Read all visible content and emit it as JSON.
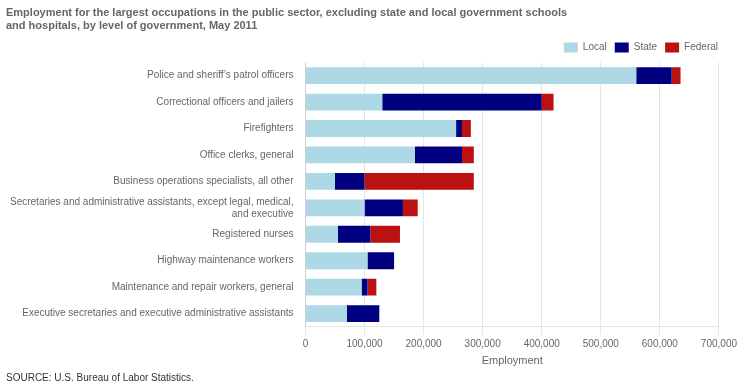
{
  "chart_data": {
    "type": "bar",
    "orientation": "horizontal",
    "stacked": true,
    "title": "Employment for the largest occupations in the public sector, excluding state and local government schools\nand hospitals, by level of government, May 2011",
    "source": "SOURCE: U.S. Bureau of Labor Statistics.",
    "xlabel": "Employment",
    "categories": [
      "Police and sheriff’s patrol officers",
      "Correctional officers and jailers",
      "Firefighters",
      "Office clerks, general",
      "Business operations specialists, all other",
      "Secretaries and administrative assistants, except legal, medical,\nand executive",
      "Registered nurses",
      "Highway maintenance workers",
      "Maintenance and repair workers, general",
      "Executive secretaries and executive administrative assistants"
    ],
    "series": [
      {
        "name": "Local",
        "color": "#ADD8E6",
        "values": [
          560000,
          130000,
          255000,
          185000,
          50000,
          100000,
          55000,
          105000,
          95000,
          70000
        ]
      },
      {
        "name": "State",
        "color": "#000080",
        "values": [
          60000,
          270000,
          10000,
          80000,
          50000,
          65000,
          55000,
          45000,
          10000,
          55000
        ]
      },
      {
        "name": "Federal",
        "color": "#BB1111",
        "values": [
          15000,
          20000,
          15000,
          20000,
          185000,
          25000,
          50000,
          0,
          15000,
          0
        ]
      }
    ],
    "xlim": [
      0,
      700000
    ],
    "xticks": [
      0,
      {
        "value": 100000,
        "label": "100,000"
      },
      {
        "value": 200000,
        "label": "200,000"
      },
      {
        "value": 300000,
        "label": "300,000"
      },
      {
        "value": 400000,
        "label": "400,000"
      },
      {
        "value": 500000,
        "label": "500,000"
      },
      {
        "value": 600000,
        "label": "600,000"
      },
      {
        "value": 700000,
        "label": "700,000"
      }
    ],
    "grid": true,
    "legend": "top right"
  }
}
